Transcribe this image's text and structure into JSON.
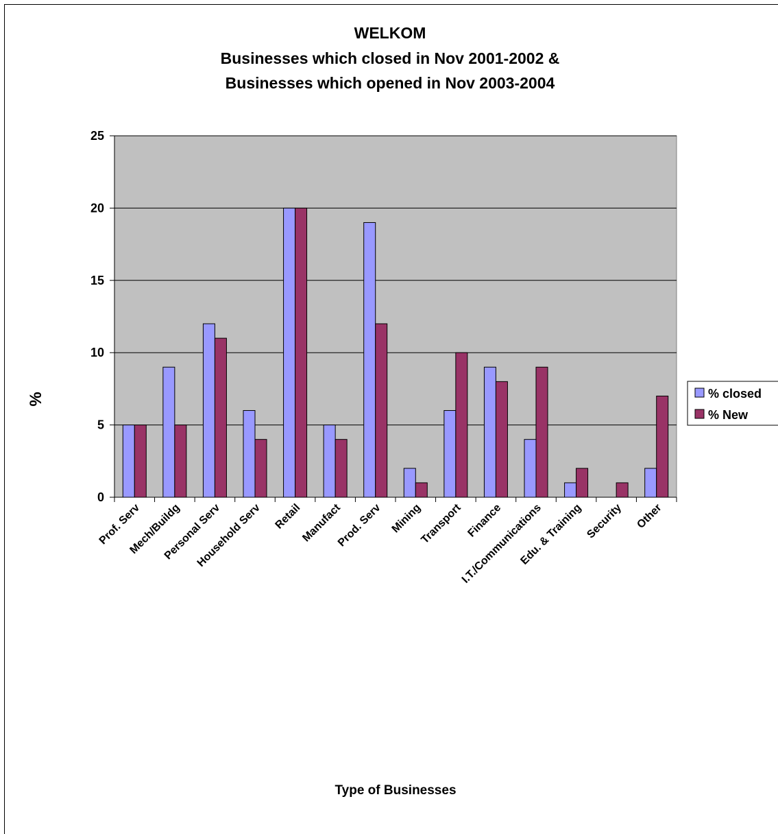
{
  "chart_data": {
    "type": "bar",
    "title_lines": [
      "WELKOM",
      "Businesses which closed in Nov 2001-2002 &",
      "Businesses which opened in Nov 2003-2004"
    ],
    "xlabel": "Type of Businesses",
    "ylabel": "%",
    "ylim": [
      0,
      25
    ],
    "yticks": [
      "0",
      "5",
      "10",
      "15",
      "20",
      "25"
    ],
    "grid": true,
    "legend_position": "right",
    "plot_background": "#c0c0c0",
    "categories": [
      "Prof. Serv",
      "Mech/Buildg",
      "Personal Serv",
      "Household Serv",
      "Retail",
      "Manufact",
      "Prod. Serv",
      "Mining",
      "Transport",
      "Finance",
      "I.T./Communications",
      "Edu. & Training",
      "Security",
      "Other"
    ],
    "series": [
      {
        "name": "% closed",
        "color": "#9999ff",
        "values": [
          5,
          9,
          12,
          6,
          20,
          5,
          19,
          2,
          6,
          9,
          4,
          1,
          0,
          2
        ]
      },
      {
        "name": "% New",
        "color": "#993366",
        "values": [
          5,
          5,
          11,
          4,
          20,
          4,
          12,
          1,
          10,
          8,
          9,
          2,
          1,
          7
        ]
      }
    ]
  }
}
